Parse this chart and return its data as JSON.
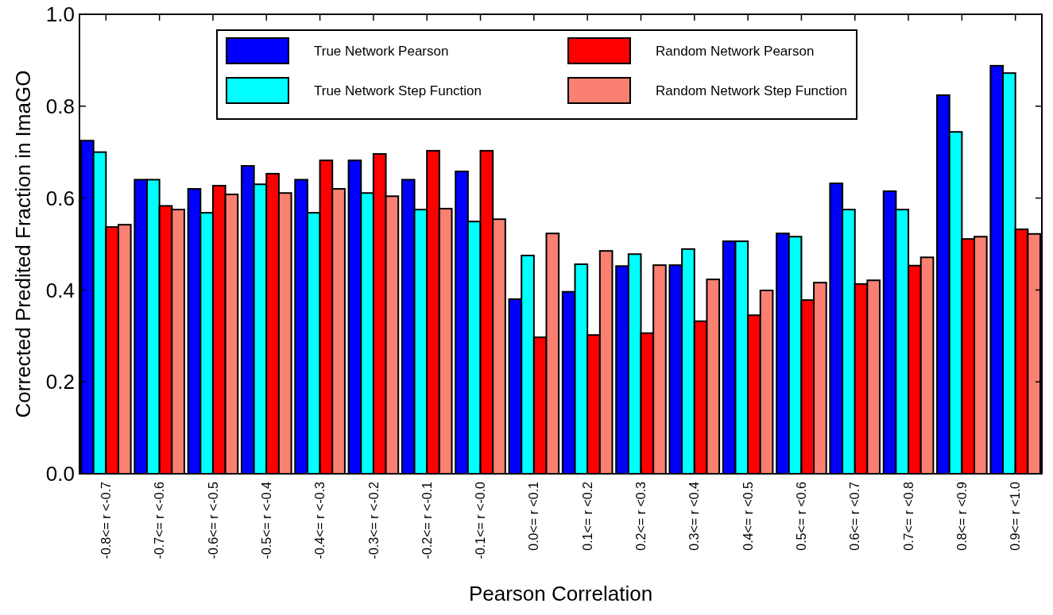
{
  "chart_data": {
    "type": "bar",
    "ylabel": "Corrected Predited Fraction in ImaGO",
    "xlabel": "Pearson Correlation",
    "categories": [
      "-0.8<= r <-0.7",
      "-0.7<= r <-0.6",
      "-0.6<= r <-0.5",
      "-0.5<= r <-0.4",
      "-0.4<= r <-0.3",
      "-0.3<= r <-0.2",
      "-0.2<= r <-0.1",
      "-0.1<= r <-0.0",
      "0.0<= r <0.1",
      "0.1<= r <0.2",
      "0.2<= r <0.3",
      "0.3<= r <0.4",
      "0.4<= r <0.5",
      "0.5<= r <0.6",
      "0.6<= r <0.7",
      "0.7<= r <0.8",
      "0.8<= r <0.9",
      "0.9<= r <1.0"
    ],
    "series": [
      {
        "name": "True Network Pearson",
        "color": "#0000ff",
        "values": [
          0.725,
          0.64,
          0.62,
          0.67,
          0.64,
          0.682,
          0.64,
          0.658,
          0.38,
          0.396,
          0.452,
          0.454,
          0.506,
          0.523,
          0.632,
          0.615,
          0.824,
          0.888
        ]
      },
      {
        "name": "True Network Step Function",
        "color": "#00ffff",
        "values": [
          0.7,
          0.64,
          0.568,
          0.63,
          0.568,
          0.611,
          0.575,
          0.549,
          0.475,
          0.456,
          0.478,
          0.489,
          0.506,
          0.516,
          0.575,
          0.575,
          0.744,
          0.872
        ]
      },
      {
        "name": "Random Network Pearson",
        "color": "#ff0000",
        "values": [
          0.537,
          0.583,
          0.627,
          0.653,
          0.682,
          0.696,
          0.703,
          0.703,
          0.297,
          0.302,
          0.306,
          0.332,
          0.345,
          0.378,
          0.413,
          0.453,
          0.511,
          0.532
        ]
      },
      {
        "name": "Random Network Step Function",
        "color": "#fa8072",
        "values": [
          0.542,
          0.575,
          0.608,
          0.611,
          0.62,
          0.604,
          0.577,
          0.554,
          0.523,
          0.485,
          0.454,
          0.423,
          0.399,
          0.416,
          0.421,
          0.471,
          0.516,
          0.522
        ]
      }
    ],
    "ylim": [
      0,
      1.0
    ],
    "yticks": [
      {
        "value": 0,
        "label": "0.0"
      },
      {
        "value": 0.2,
        "label": "0.2"
      },
      {
        "value": 0.4,
        "label": "0.4"
      },
      {
        "value": 0.6,
        "label": "0.6"
      },
      {
        "value": 0.8,
        "label": "0.8"
      },
      {
        "value": 1.0,
        "label": "1.0"
      }
    ],
    "legend": "top",
    "grid": false
  }
}
